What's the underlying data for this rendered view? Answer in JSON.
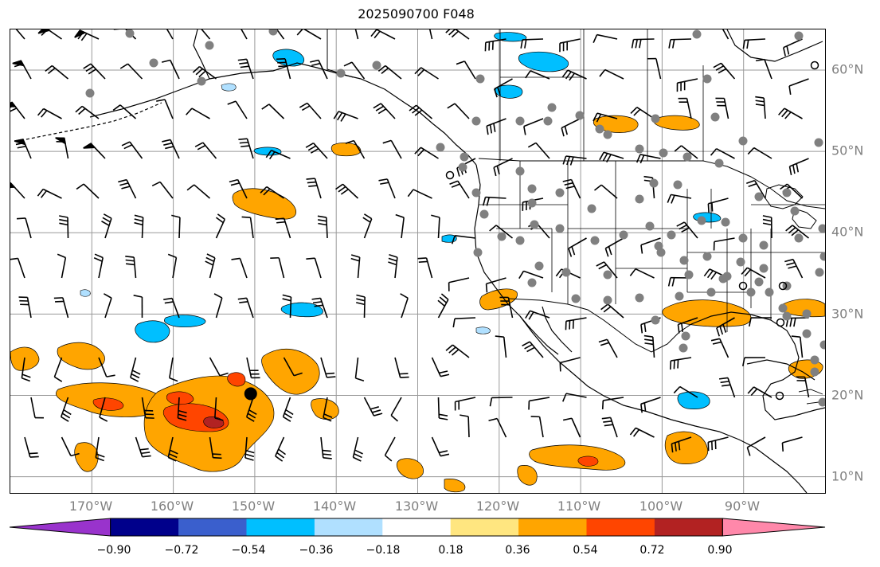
{
  "title": "2025090700 F048",
  "lon_labels": [
    "170°W",
    "160°W",
    "150°W",
    "140°W",
    "130°W",
    "120°W",
    "110°W",
    "100°W",
    "90°W"
  ],
  "lat_labels": [
    "60°N",
    "50°N",
    "40°N",
    "30°N",
    "20°N",
    "10°N"
  ],
  "colorbar": {
    "colors": [
      "#9933cc",
      "#00008b",
      "#3a5fcd",
      "#00bfff",
      "#b0e0ff",
      "#ffffff",
      "#ffe680",
      "#ffa500",
      "#ff4500",
      "#b22222",
      "#ff88aa"
    ],
    "tick_labels": [
      "−0.90",
      "−0.72",
      "−0.54",
      "−0.36",
      "−0.18",
      "0.18",
      "0.36",
      "0.54",
      "0.72",
      "0.90"
    ]
  },
  "map": {
    "lon_range": [
      -180,
      -80
    ],
    "lat_range": [
      8,
      65
    ],
    "gridline_color": "#999999",
    "marked_point": {
      "lon": -150.5,
      "lat": 20.2
    }
  }
}
